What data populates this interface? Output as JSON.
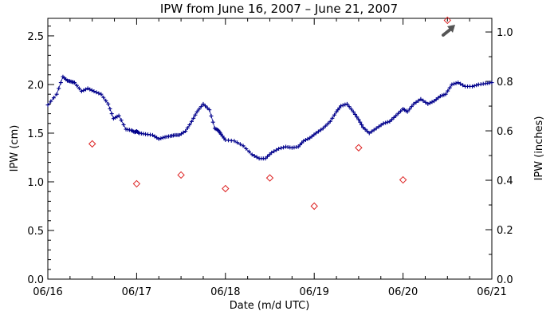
{
  "chart_data": {
    "type": "scatter",
    "title": "IPW from June 16, 2007 – June 21, 2007",
    "xlabel": "Date (m/d UTC)",
    "ylabel": "IPW (cm)",
    "ylabel_right": "IPW (inches)",
    "x_ticks": [
      "06/16",
      "06/17",
      "06/18",
      "06/19",
      "06/20",
      "06/21"
    ],
    "y_ticks": [
      "0.0",
      "0.5",
      "1.0",
      "1.5",
      "2.0",
      "2.5"
    ],
    "y_ticks_right": [
      "0.0",
      "0.2",
      "0.4",
      "0.6",
      "0.8",
      "1.0"
    ],
    "xlim": [
      0,
      5
    ],
    "ylim": [
      0,
      2.68
    ],
    "grid": false,
    "series": [
      {
        "marker": "plus",
        "color": "#00008b",
        "x": [
          0.0,
          0.1,
          0.17,
          0.22,
          0.26,
          0.3,
          0.38,
          0.45,
          0.52,
          0.6,
          0.68,
          0.74,
          0.8,
          0.88,
          0.94,
          0.98,
          1.0,
          1.03,
          1.1,
          1.18,
          1.25,
          1.32,
          1.38,
          1.43,
          1.48,
          1.55,
          1.62,
          1.68,
          1.75,
          1.82,
          1.88,
          1.92,
          1.95,
          2.0,
          2.1,
          2.2,
          2.3,
          2.38,
          2.45,
          2.52,
          2.6,
          2.68,
          2.75,
          2.82,
          2.88,
          2.95,
          3.02,
          3.1,
          3.18,
          3.25,
          3.3,
          3.37,
          3.44,
          3.5,
          3.55,
          3.62,
          3.7,
          3.78,
          3.85,
          3.92,
          4.0,
          4.05,
          4.12,
          4.2,
          4.28,
          4.35,
          4.42,
          4.48,
          4.55,
          4.62,
          4.7,
          4.78,
          4.85,
          4.93,
          5.0
        ],
        "y": [
          1.79,
          1.9,
          2.08,
          2.04,
          2.03,
          2.02,
          1.93,
          1.96,
          1.93,
          1.9,
          1.8,
          1.65,
          1.68,
          1.54,
          1.53,
          1.51,
          1.52,
          1.5,
          1.49,
          1.48,
          1.44,
          1.46,
          1.47,
          1.48,
          1.48,
          1.52,
          1.62,
          1.72,
          1.8,
          1.74,
          1.55,
          1.53,
          1.49,
          1.43,
          1.42,
          1.37,
          1.28,
          1.24,
          1.24,
          1.3,
          1.34,
          1.36,
          1.35,
          1.36,
          1.42,
          1.45,
          1.5,
          1.55,
          1.62,
          1.72,
          1.78,
          1.8,
          1.72,
          1.64,
          1.56,
          1.5,
          1.55,
          1.6,
          1.62,
          1.68,
          1.75,
          1.72,
          1.8,
          1.85,
          1.8,
          1.83,
          1.88,
          1.9,
          2.0,
          2.02,
          1.98,
          1.98,
          2.0,
          2.01,
          2.02
        ]
      },
      {
        "marker": "diamond",
        "color": "#dd2222",
        "x": [
          0.5,
          1.0,
          1.5,
          2.0,
          2.5,
          3.0,
          3.5,
          4.0,
          4.5
        ],
        "y": [
          1.39,
          0.98,
          1.07,
          0.93,
          1.04,
          0.75,
          1.35,
          1.02,
          2.66
        ]
      }
    ],
    "annotation": {
      "type": "arrow",
      "color": "#555555",
      "pointing": "up-right"
    }
  }
}
